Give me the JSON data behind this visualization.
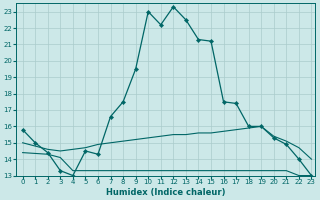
{
  "xlabel": "Humidex (Indice chaleur)",
  "xlim": [
    -0.5,
    23.3
  ],
  "ylim": [
    13.0,
    23.5
  ],
  "yticks": [
    13,
    14,
    15,
    16,
    17,
    18,
    19,
    20,
    21,
    22,
    23
  ],
  "xticks": [
    0,
    1,
    2,
    3,
    4,
    5,
    6,
    7,
    8,
    9,
    10,
    11,
    12,
    13,
    14,
    15,
    16,
    17,
    18,
    19,
    20,
    21,
    22,
    23
  ],
  "bg_color": "#cce8e8",
  "grid_color": "#aacccc",
  "line_color": "#006666",
  "line1": {
    "x": [
      0,
      1,
      2,
      3,
      4,
      5,
      6,
      7,
      8,
      9,
      10,
      11,
      12,
      13,
      14,
      15,
      16,
      17,
      18,
      19,
      20,
      21,
      22,
      23
    ],
    "y": [
      15.8,
      15.0,
      14.4,
      13.3,
      13.0,
      14.5,
      14.3,
      16.6,
      17.5,
      19.5,
      23.0,
      22.2,
      23.3,
      22.5,
      21.3,
      21.2,
      17.5,
      17.4,
      16.0,
      16.0,
      15.3,
      14.9,
      14.0,
      13.0
    ]
  },
  "line2": {
    "x": [
      0,
      1,
      2,
      3,
      4,
      5,
      6,
      7,
      8,
      9,
      10,
      11,
      12,
      13,
      14,
      15,
      16,
      17,
      18,
      19,
      20,
      21,
      22,
      23
    ],
    "y": [
      15.0,
      14.8,
      14.6,
      14.5,
      14.6,
      14.7,
      14.9,
      15.0,
      15.1,
      15.2,
      15.3,
      15.4,
      15.5,
      15.5,
      15.6,
      15.6,
      15.7,
      15.8,
      15.9,
      16.0,
      15.4,
      15.1,
      14.7,
      14.0
    ]
  },
  "line3": {
    "x": [
      0,
      2,
      3,
      4,
      5,
      6,
      7,
      8,
      9,
      10,
      11,
      12,
      13,
      14,
      15,
      16,
      17,
      18,
      19,
      20,
      21,
      22,
      23
    ],
    "y": [
      14.4,
      14.3,
      14.1,
      13.3,
      13.3,
      13.3,
      13.3,
      13.3,
      13.3,
      13.3,
      13.3,
      13.3,
      13.3,
      13.3,
      13.3,
      13.3,
      13.3,
      13.3,
      13.3,
      13.3,
      13.3,
      13.0,
      13.0
    ]
  }
}
